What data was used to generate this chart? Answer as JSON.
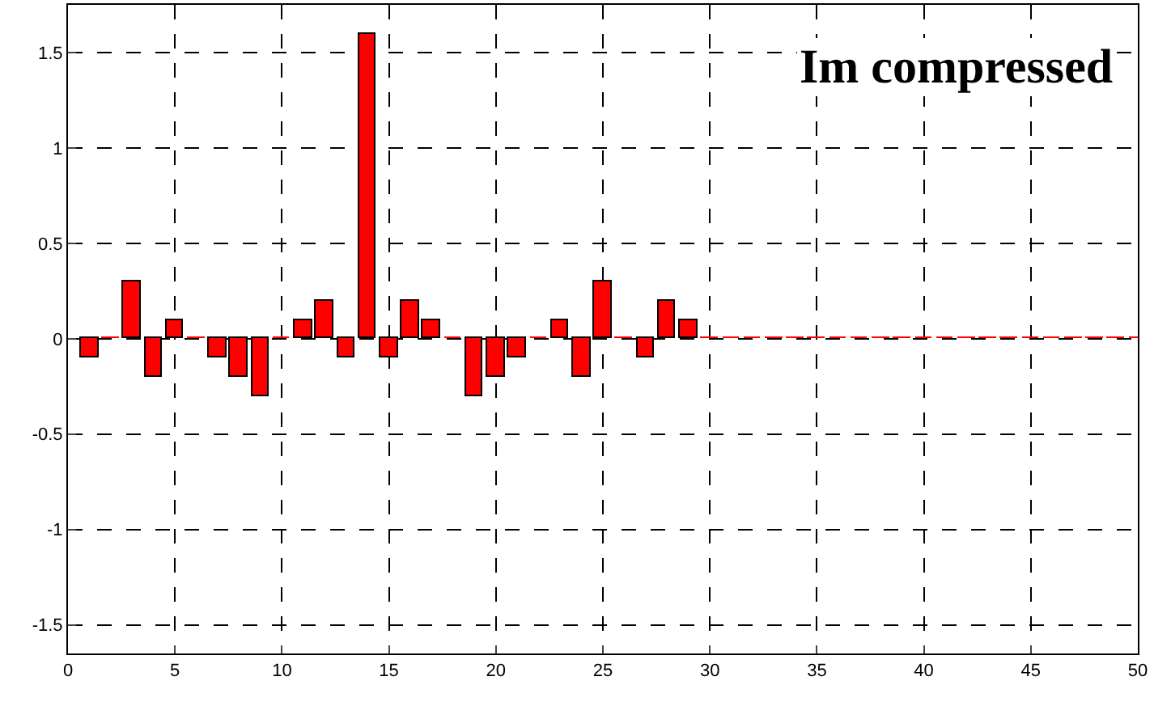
{
  "chart_data": {
    "type": "bar",
    "annotations": [
      "Im compressed"
    ],
    "x": [
      1,
      2,
      3,
      4,
      5,
      6,
      7,
      8,
      9,
      10,
      11,
      12,
      13,
      14,
      15,
      16,
      17,
      18,
      19,
      20,
      21,
      22,
      23,
      24,
      25,
      26,
      27,
      28,
      29,
      30,
      31,
      32,
      33,
      34,
      35,
      36,
      37,
      38,
      39,
      40,
      41,
      42,
      43,
      44,
      45,
      46,
      47,
      48,
      49,
      50
    ],
    "values": [
      -0.1,
      0,
      0.3,
      -0.2,
      0.1,
      0,
      -0.1,
      -0.2,
      -0.3,
      0,
      0.1,
      0.2,
      -0.1,
      1.6,
      -0.1,
      0.2,
      0.1,
      0,
      -0.3,
      -0.2,
      -0.1,
      0,
      0.1,
      -0.2,
      0.3,
      0,
      -0.1,
      0.2,
      0.1,
      0,
      0,
      0,
      0,
      0,
      0,
      0,
      0,
      0,
      0,
      0,
      0,
      0,
      0,
      0,
      0,
      0,
      0,
      0,
      0,
      0
    ],
    "color": "#ff0000",
    "xlim": [
      0,
      50
    ],
    "xticks": [
      0,
      5,
      10,
      15,
      20,
      25,
      30,
      35,
      40,
      45,
      50
    ],
    "ylim": [
      -1.65,
      1.75
    ],
    "yticks": [
      -1.5,
      -1,
      -0.5,
      0,
      0.5,
      1,
      1.5
    ],
    "grid": true
  }
}
